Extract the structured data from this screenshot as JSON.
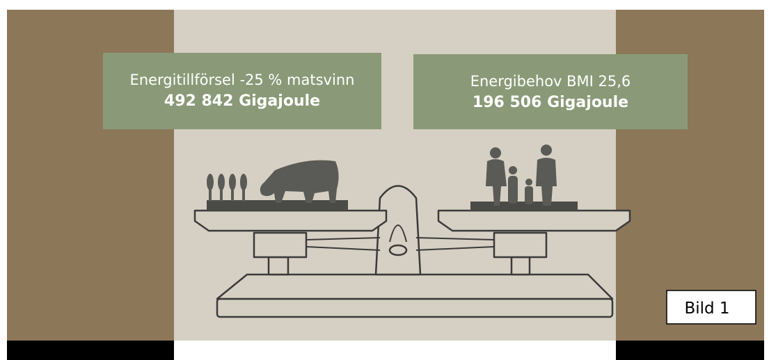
{
  "boxes": [
    {
      "line1": "Energitillförsel -25 % matsvinn",
      "line2": "492 842 Gigajoule"
    },
    {
      "line1": "Energibehov BMI 25,6",
      "line2": "196 506 Gigajoule"
    }
  ],
  "label": "Bild 1"
}
